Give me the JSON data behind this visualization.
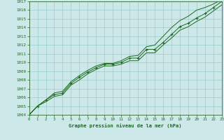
{
  "x_data": [
    0,
    1,
    2,
    3,
    4,
    5,
    6,
    7,
    8,
    9,
    10,
    11,
    12,
    13,
    14,
    15,
    16,
    17,
    18,
    19,
    20,
    21,
    22,
    23
  ],
  "y_main": [
    1004.0,
    1005.0,
    1005.7,
    1006.3,
    1006.5,
    1007.6,
    1008.3,
    1008.9,
    1009.4,
    1009.8,
    1009.8,
    1010.0,
    1010.5,
    1010.5,
    1011.5,
    1011.5,
    1012.3,
    1013.2,
    1014.1,
    1014.5,
    1015.1,
    1015.6,
    1016.3,
    1017.0
  ],
  "y_upper": [
    1004.0,
    1005.0,
    1005.7,
    1006.5,
    1006.7,
    1007.8,
    1008.5,
    1009.1,
    1009.6,
    1009.9,
    1009.9,
    1010.2,
    1010.7,
    1010.8,
    1011.8,
    1012.0,
    1013.0,
    1014.0,
    1014.8,
    1015.3,
    1016.0,
    1016.3,
    1016.7,
    1017.2
  ],
  "y_lower": [
    1004.0,
    1005.0,
    1005.5,
    1006.1,
    1006.3,
    1007.4,
    1008.0,
    1008.7,
    1009.2,
    1009.6,
    1009.6,
    1009.8,
    1010.2,
    1010.2,
    1011.1,
    1011.1,
    1012.0,
    1012.8,
    1013.7,
    1014.1,
    1014.7,
    1015.2,
    1015.9,
    1016.6
  ],
  "bg_color": "#cce8e8",
  "grid_color": "#99cccc",
  "line_color": "#1a6b1a",
  "marker_color": "#1a6b1a",
  "xlabel": "Graphe pression niveau de la mer (hPa)",
  "xlabel_color": "#1a6b1a",
  "tick_color": "#1a6b1a",
  "ylim": [
    1004,
    1017
  ],
  "xlim": [
    0,
    23
  ],
  "yticks": [
    1004,
    1005,
    1006,
    1007,
    1008,
    1009,
    1010,
    1011,
    1012,
    1013,
    1014,
    1015,
    1016,
    1017
  ],
  "xticks": [
    0,
    1,
    2,
    3,
    4,
    5,
    6,
    7,
    8,
    9,
    10,
    11,
    12,
    13,
    14,
    15,
    16,
    17,
    18,
    19,
    20,
    21,
    22,
    23
  ],
  "spine_color": "#336633"
}
